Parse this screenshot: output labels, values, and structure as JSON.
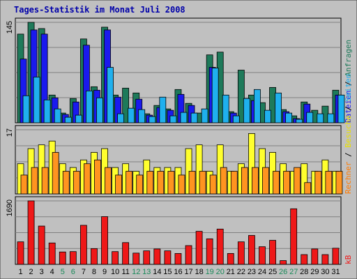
{
  "chart_data": {
    "type": "bar",
    "title": "Tages-Statistik im Monat Juli 2008",
    "categories": [
      "1",
      "2",
      "3",
      "4",
      "5",
      "6",
      "7",
      "8",
      "9",
      "10",
      "11",
      "12",
      "13",
      "14",
      "15",
      "16",
      "17",
      "18",
      "19",
      "20",
      "21",
      "22",
      "23",
      "24",
      "25",
      "26",
      "27",
      "28",
      "29",
      "30",
      "31"
    ],
    "weekend_days": [
      "5",
      "6",
      "12",
      "13",
      "19",
      "20",
      "26",
      "27"
    ],
    "panels": [
      {
        "id": "top",
        "max_label": "145",
        "ylim": [
          0,
          145
        ],
        "series": [
          {
            "name": "Anfragen",
            "color": "#1e7a5a",
            "values": [
              128,
              145,
              136,
              40,
              14,
              35,
              121,
              52,
              138,
              40,
              50,
              43,
              13,
              25,
              20,
              48,
              28,
              14,
              98,
              102,
              16,
              76,
              40,
              29,
              51,
              19,
              10,
              30,
              18,
              24,
              47
            ]
          },
          {
            "name": "Dateien",
            "color": "#1a1aee",
            "values": [
              92,
              134,
              128,
              36,
              12,
              30,
              112,
              47,
              134,
              37,
              0,
              34,
              11,
              22,
              18,
              41,
              25,
              0,
              80,
              0,
              14,
              0,
              32,
              0,
              0,
              16,
              6,
              27,
              0,
              0,
              40
            ]
          },
          {
            "name": "Seiten",
            "color": "#1fb0ee",
            "values": [
              39,
              66,
              33,
              20,
              8,
              11,
              46,
              36,
              80,
              13,
              21,
              19,
              9,
              37,
              10,
              15,
              14,
              20,
              79,
              40,
              10,
              35,
              48,
              18,
              43,
              14,
              5,
              15,
              13,
              13,
              40
            ]
          }
        ],
        "legend_text_parts": [
          "Dateien",
          " / ",
          "Anfragen"
        ]
      },
      {
        "id": "middle",
        "max_label": "17",
        "ylim": [
          0,
          17
        ],
        "series": [
          {
            "name": "Besuche",
            "color": "#ffff2e",
            "values": [
              8,
              12,
              13,
              14,
              8,
              7,
              9,
              11,
              12,
              7,
              8,
              6,
              9,
              7,
              7,
              7,
              12,
              13,
              6,
              13,
              6,
              8,
              16,
              12,
              11,
              8,
              6,
              8,
              6,
              9,
              6
            ]
          },
          {
            "name": "Rechner",
            "color": "#ff9420",
            "values": [
              5,
              7,
              7,
              11,
              6,
              6,
              8,
              9,
              7,
              5,
              6,
              5,
              6,
              6,
              6,
              5,
              6,
              6,
              5,
              7,
              6,
              7,
              7,
              7,
              6,
              6,
              7,
              3,
              6,
              6,
              6
            ]
          }
        ],
        "legend_text_parts": [
          "Rechner",
          " / ",
          "Besuche",
          " / ",
          "Seiten"
        ]
      },
      {
        "id": "bottom",
        "max_label": "1690",
        "ylim": [
          0,
          1690
        ],
        "series": [
          {
            "name": "kB",
            "color": "#ef1818",
            "values": [
              600,
              1690,
              1020,
              570,
              330,
              340,
              1040,
              420,
              1270,
              340,
              580,
              300,
              360,
              410,
              360,
              290,
              500,
              880,
              680,
              940,
              290,
              600,
              770,
              470,
              640,
              100,
              1480,
              260,
              410,
              260,
              430
            ]
          }
        ],
        "legend_text_parts": [
          "kB"
        ]
      }
    ]
  }
}
